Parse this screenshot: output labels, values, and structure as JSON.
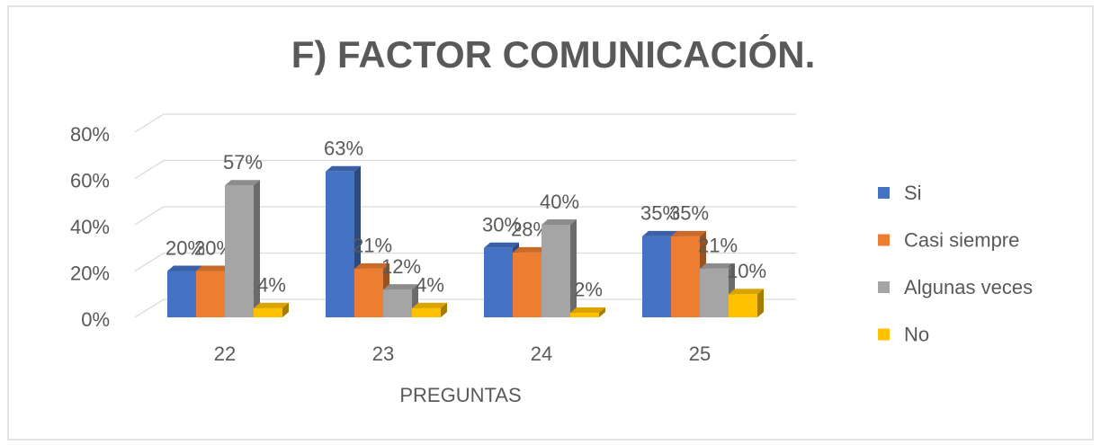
{
  "chart_data": {
    "type": "bar",
    "title": "F) FACTOR COMUNICACIÓN.",
    "x_label": "PREGUNTAS",
    "categories": [
      "22",
      "23",
      "24",
      "25"
    ],
    "series": [
      {
        "name": "Si",
        "color": "#4472c4",
        "values": [
          20,
          63,
          30,
          35
        ],
        "value_labels": [
          "20%",
          "63%",
          "30%",
          "35%"
        ]
      },
      {
        "name": "Casi siempre",
        "color": "#ed7d31",
        "values": [
          20,
          21,
          28,
          35
        ],
        "value_labels": [
          "20%",
          "21%",
          "28%",
          "35%"
        ]
      },
      {
        "name": "Algunas veces",
        "color": "#a5a5a5",
        "values": [
          57,
          12,
          40,
          21
        ],
        "value_labels": [
          "57%",
          "12%",
          "40%",
          "21%"
        ]
      },
      {
        "name": "No",
        "color": "#ffc000",
        "values": [
          4,
          4,
          2,
          10
        ],
        "value_labels": [
          "4%",
          "4%",
          "2%",
          "10%"
        ]
      }
    ],
    "ylim": [
      0,
      80
    ],
    "yticks": [
      {
        "value": 0,
        "label": "0%"
      },
      {
        "value": 20,
        "label": "20%"
      },
      {
        "value": 40,
        "label": "40%"
      },
      {
        "value": 60,
        "label": "60%"
      },
      {
        "value": 80,
        "label": "80%"
      }
    ],
    "grid": true,
    "legend": "right",
    "three_d": true
  }
}
